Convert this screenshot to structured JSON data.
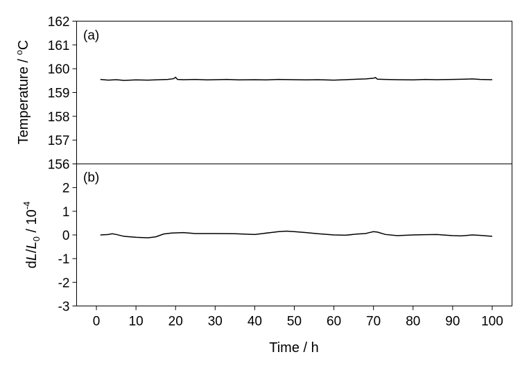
{
  "chart_data": [
    {
      "type": "line",
      "panel_label": "(a)",
      "ylabel": "Temperature / °C",
      "ylabel_parts": {
        "main": "Temperature / ",
        "deg": "o",
        "unit": "C"
      },
      "ylim": [
        156,
        162
      ],
      "yticks": [
        "156",
        "157",
        "158",
        "159",
        "160",
        "161",
        "162"
      ],
      "xlim": [
        -5,
        105
      ],
      "grid": false,
      "series": [
        {
          "x": [
            1,
            3,
            5,
            7,
            10,
            13,
            16,
            18,
            19.5,
            20,
            20.5,
            22,
            25,
            28,
            30,
            33,
            36,
            40,
            43,
            46,
            50,
            53,
            56,
            60,
            63,
            66,
            68,
            70,
            70.5,
            71,
            73,
            76,
            80,
            83,
            86,
            90,
            93,
            95,
            97,
            100
          ],
          "y": [
            159.55,
            159.52,
            159.54,
            159.51,
            159.53,
            159.52,
            159.54,
            159.55,
            159.58,
            159.64,
            159.55,
            159.54,
            159.55,
            159.53,
            159.54,
            159.55,
            159.53,
            159.54,
            159.53,
            159.55,
            159.54,
            159.53,
            159.54,
            159.52,
            159.54,
            159.56,
            159.57,
            159.6,
            159.63,
            159.56,
            159.55,
            159.54,
            159.53,
            159.55,
            159.54,
            159.55,
            159.56,
            159.57,
            159.55,
            159.54
          ]
        }
      ]
    },
    {
      "type": "line",
      "panel_label": "(b)",
      "ylabel_parts": {
        "d": "d",
        "L1": "L",
        "slash": "/",
        "L2": "L",
        "sub": "0",
        "rest": " / 10",
        "exp": "-4"
      },
      "ylim": [
        -3,
        3
      ],
      "yticks": [
        "-3",
        "-2",
        "-1",
        "0",
        "1",
        "2"
      ],
      "xlim": [
        -5,
        105
      ],
      "xticks": [
        "0",
        "10",
        "20",
        "30",
        "40",
        "50",
        "60",
        "70",
        "80",
        "90",
        "100"
      ],
      "xlabel": "Time / h",
      "grid": false,
      "series": [
        {
          "x": [
            1,
            3,
            4,
            5,
            7,
            10,
            13,
            15,
            17,
            19,
            22,
            25,
            30,
            35,
            40,
            42,
            44,
            46,
            48,
            50,
            53,
            56,
            60,
            63,
            66,
            68,
            69,
            70,
            71,
            73,
            76,
            80,
            83,
            86,
            90,
            92,
            93,
            95,
            97,
            100
          ],
          "y": [
            0.0,
            0.02,
            0.05,
            0.02,
            -0.06,
            -0.1,
            -0.12,
            -0.08,
            0.04,
            0.08,
            0.1,
            0.06,
            0.06,
            0.05,
            0.02,
            0.06,
            0.1,
            0.14,
            0.16,
            0.14,
            0.1,
            0.05,
            0.0,
            -0.01,
            0.04,
            0.06,
            0.1,
            0.14,
            0.12,
            0.02,
            -0.03,
            0.0,
            0.01,
            0.02,
            -0.03,
            -0.04,
            -0.03,
            0.0,
            -0.02,
            -0.06
          ]
        }
      ]
    }
  ]
}
